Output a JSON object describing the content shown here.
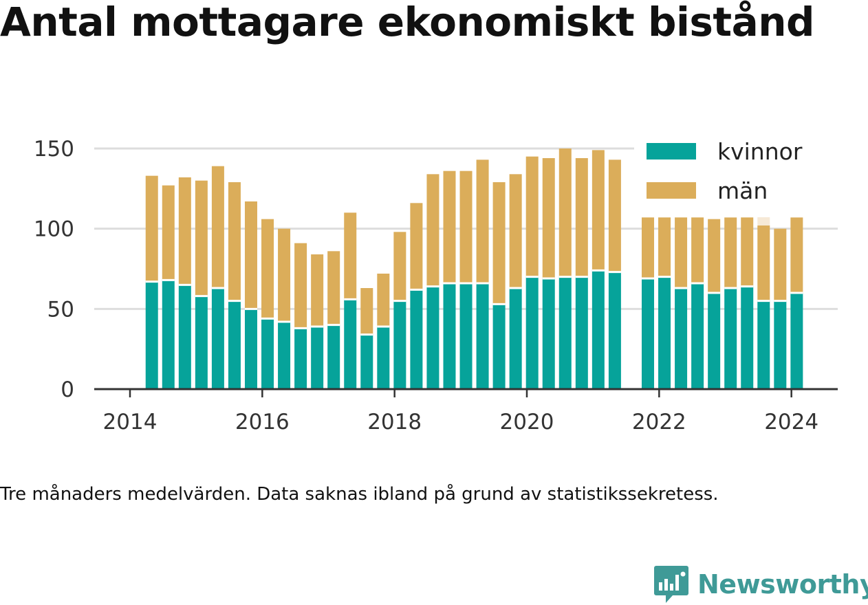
{
  "title": "Antal mottagare ekonomiskt bistånd",
  "caption": "Tre månaders medelvärden. Data saknas ibland på grund av statistikssekretess.",
  "brand": {
    "name": "Newsworthy",
    "color": "#3f9a97"
  },
  "colors": {
    "kvinnor": "#06a39a",
    "man": "#dbad5a",
    "grid": "#dddddd",
    "axis": "#333333",
    "man_faded": "#f6e9d6"
  },
  "chart_data": {
    "type": "bar",
    "stacked": true,
    "x_unit": "year",
    "xlim": [
      2013.55,
      2025.15
    ],
    "ylim": [
      0,
      160
    ],
    "yticks": [
      0,
      50,
      100,
      150
    ],
    "xticks": [
      2014,
      2016,
      2018,
      2020,
      2022,
      2024
    ],
    "xlabel": "",
    "ylabel": "",
    "grid": true,
    "legend_position": "top-right",
    "series": [
      {
        "name": "kvinnor",
        "color": "#06a39a",
        "x": [
          2014.33,
          2014.58,
          2014.83,
          2015.08,
          2015.33,
          2015.58,
          2015.83,
          2016.08,
          2016.33,
          2016.58,
          2016.83,
          2017.08,
          2017.33,
          2017.58,
          2017.83,
          2018.08,
          2018.33,
          2018.58,
          2018.83,
          2019.08,
          2019.33,
          2019.58,
          2019.83,
          2020.08,
          2020.33,
          2020.58,
          2020.83,
          2021.08,
          2021.33,
          2021.83,
          2022.08,
          2022.33,
          2022.58,
          2022.83,
          2023.08,
          2023.33,
          2023.58,
          2023.83,
          2024.08
        ],
        "values": [
          67,
          68,
          65,
          58,
          63,
          55,
          50,
          44,
          42,
          38,
          39,
          40,
          56,
          34,
          39,
          55,
          62,
          64,
          66,
          66,
          66,
          53,
          63,
          70,
          69,
          70,
          70,
          74,
          73,
          69,
          70,
          63,
          66,
          60,
          63,
          64,
          55,
          55,
          60
        ]
      },
      {
        "name": "män",
        "color": "#dbad5a",
        "x": [
          2014.33,
          2014.58,
          2014.83,
          2015.08,
          2015.33,
          2015.58,
          2015.83,
          2016.08,
          2016.33,
          2016.58,
          2016.83,
          2017.08,
          2017.33,
          2017.58,
          2017.83,
          2018.08,
          2018.33,
          2018.58,
          2018.83,
          2019.08,
          2019.33,
          2019.58,
          2019.83,
          2020.08,
          2020.33,
          2020.58,
          2020.83,
          2021.08,
          2021.33,
          2021.83,
          2022.08,
          2022.33,
          2022.58,
          2022.83,
          2023.08,
          2023.33,
          2023.58,
          2023.83,
          2024.08
        ],
        "values": [
          66,
          59,
          67,
          72,
          76,
          74,
          67,
          62,
          58,
          53,
          45,
          46,
          54,
          29,
          33,
          43,
          54,
          70,
          70,
          70,
          77,
          76,
          71,
          75,
          75,
          80,
          74,
          75,
          70,
          38,
          37,
          44,
          41,
          46,
          44,
          43,
          47,
          45,
          47
        ]
      }
    ]
  }
}
